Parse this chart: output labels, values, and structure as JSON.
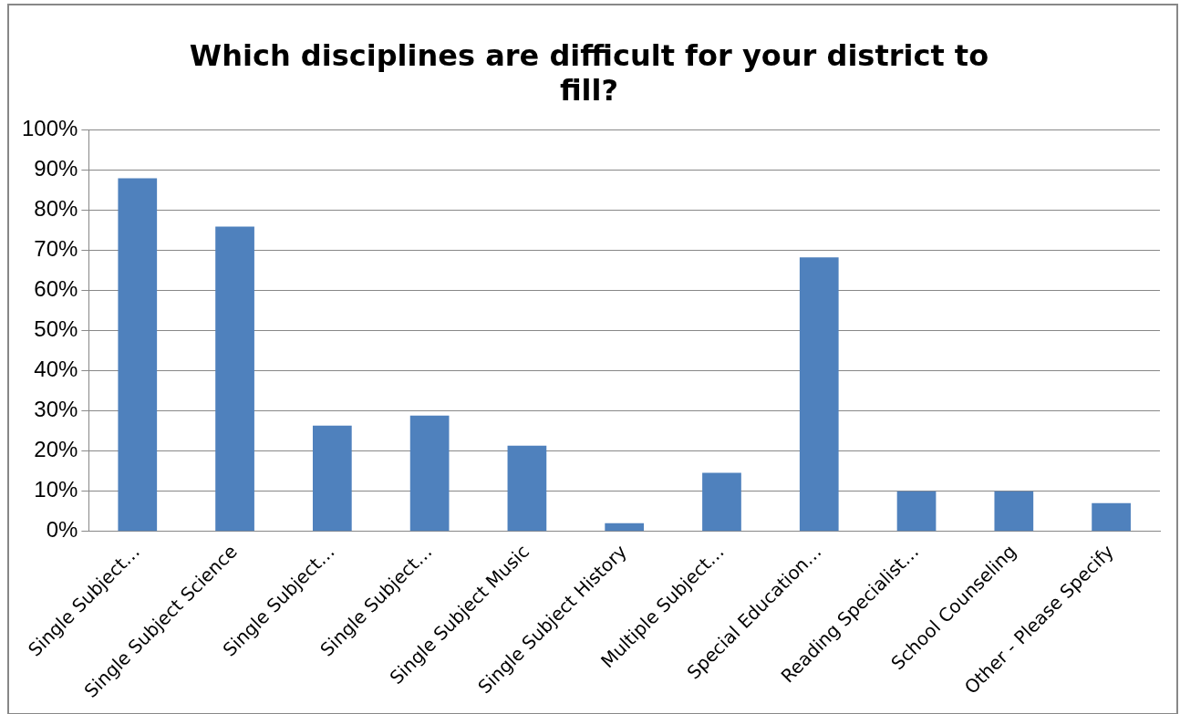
{
  "chart_data": {
    "type": "bar",
    "title": "Which disciplines are difficult for your district to fill?",
    "categories": [
      "Single Subject…",
      "Single Subject Science",
      "Single Subject…",
      "Single Subject…",
      "Single Subject Music",
      "Single Subject History",
      "Multiple Subject…",
      "Special Education…",
      "Reading Specialist…",
      "School Counseling",
      "Other - Please Specify"
    ],
    "values": [
      88,
      76,
      26.4,
      28.9,
      21.4,
      2.1,
      14.6,
      68.3,
      10,
      10,
      7.1
    ],
    "color": "#4f81bd",
    "ylim": [
      0,
      100
    ],
    "yticks": [
      {
        "value": 0,
        "label": "0%"
      },
      {
        "value": 10,
        "label": "10%"
      },
      {
        "value": 20,
        "label": "20%"
      },
      {
        "value": 30,
        "label": "30%"
      },
      {
        "value": 40,
        "label": "40%"
      },
      {
        "value": 50,
        "label": "50%"
      },
      {
        "value": 60,
        "label": "60%"
      },
      {
        "value": 70,
        "label": "70%"
      },
      {
        "value": 80,
        "label": "80%"
      },
      {
        "value": 90,
        "label": "90%"
      },
      {
        "value": 100,
        "label": "100%"
      }
    ],
    "grid": "y",
    "legend": false
  }
}
